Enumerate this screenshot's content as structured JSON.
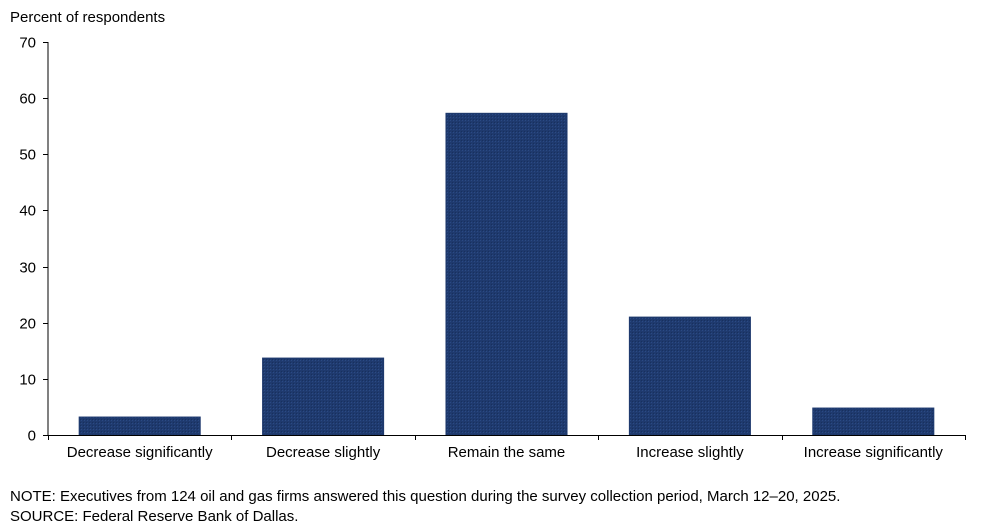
{
  "chart_data": {
    "type": "bar",
    "title": "",
    "ylabel": "Percent of respondents",
    "xlabel": "",
    "categories": [
      "Decrease significantly",
      "Decrease slightly",
      "Remain the same",
      "Increase slightly",
      "Increase significantly"
    ],
    "values": [
      3.2,
      13.7,
      57.3,
      21.0,
      4.8
    ],
    "ylim": [
      0,
      70
    ],
    "yticks": [
      0,
      10,
      20,
      30,
      40,
      50,
      60,
      70
    ],
    "grid": false,
    "bar_color": "#1f3a6e"
  },
  "notes": {
    "note": "NOTE:  Executives  from 124 oil and gas firms answered this question during the survey collection period, March 12–20, 2025.",
    "source": "SOURCE:  Federal Reserve Bank of Dallas."
  }
}
